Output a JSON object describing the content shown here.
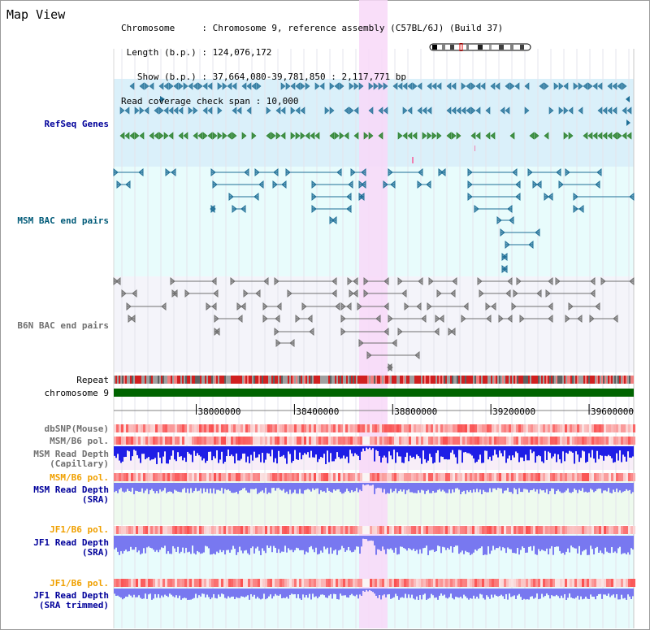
{
  "view": {
    "title": "Map View",
    "info_lines": [
      "Chromosome     : Chromosome 9, reference assembly (C57BL/6J) (Build 37)",
      " Length (b.p.) : 124,076,172",
      "   Show (b.p.) : 37,664,080-39,781,850 : 2,117,771 bp",
      "Read coverage check span : 10,000"
    ]
  },
  "tracks": {
    "refseq_genes": "RefSeq Genes",
    "msm_bac": "MSM BAC end pairs",
    "b6n_bac": "B6N BAC end pairs",
    "repeat": "Repeat",
    "chromosome": "chromosome 9",
    "dbsnp": "dbSNP(Mouse)",
    "msm_b6_pol_1": "MSM/B6 pol.",
    "msm_read_depth_cap_1": "MSM Read Depth",
    "msm_read_depth_cap_2": "(Capillary)",
    "msm_b6_pol_2": "MSM/B6 pol.",
    "msm_read_depth_sra_1": "MSM Read Depth",
    "msm_read_depth_sra_2": "(SRA)",
    "jf1_b6_pol_1": "JF1/B6 pol.",
    "jf1_read_depth_sra_1": "JF1 Read Depth",
    "jf1_read_depth_sra_2": "(SRA)",
    "jf1_b6_pol_2": "JF1/B6 pol.",
    "jf1_read_depth_trim_1": "JF1 Read Depth",
    "jf1_read_depth_trim_2": "(SRA trimmed)"
  },
  "axis": {
    "ticks": [
      {
        "label": "38000000",
        "value": 38000000
      },
      {
        "label": "38400000",
        "value": 38400000
      },
      {
        "label": "38800000",
        "value": 38800000
      },
      {
        "label": "39200000",
        "value": 39200000
      },
      {
        "label": "39600000",
        "value": 39600000
      }
    ],
    "view_start": 37664080,
    "view_end": 39781850
  },
  "colors": {
    "highlight": "#f8d8f8",
    "refseq_bg": "#daf0fa",
    "msm_bg": "#e8fcfc",
    "b6n_bg": "#f4f4fa",
    "chromosome_bar": "#006400",
    "refseq_blue": "#1e6e96",
    "refseq_green": "#1e7a1e",
    "msm_pair": "#1e6e96",
    "b6n_pair": "#707070",
    "depth_capillary": "#1e1ee6",
    "depth_sra": "#7878f0"
  }
}
